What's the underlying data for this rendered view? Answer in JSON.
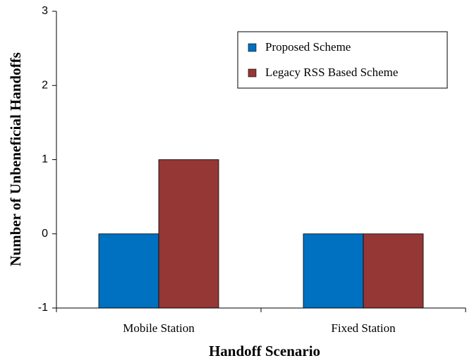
{
  "chart_data": {
    "type": "bar",
    "categories": [
      "Mobile Station",
      "Fixed Station"
    ],
    "series": [
      {
        "name": "Proposed Scheme",
        "color": "#0070c0",
        "values": [
          0,
          0
        ]
      },
      {
        "name": "Legacy RSS Based Scheme",
        "color": "#953735",
        "values": [
          1,
          0
        ]
      }
    ],
    "xlabel": "Handoff Scenario",
    "ylabel": "Number of Unbeneficial Handoffs",
    "ylim": [
      -1,
      3
    ],
    "yticks": [
      -1,
      0,
      1,
      2,
      3
    ],
    "grid": false
  }
}
